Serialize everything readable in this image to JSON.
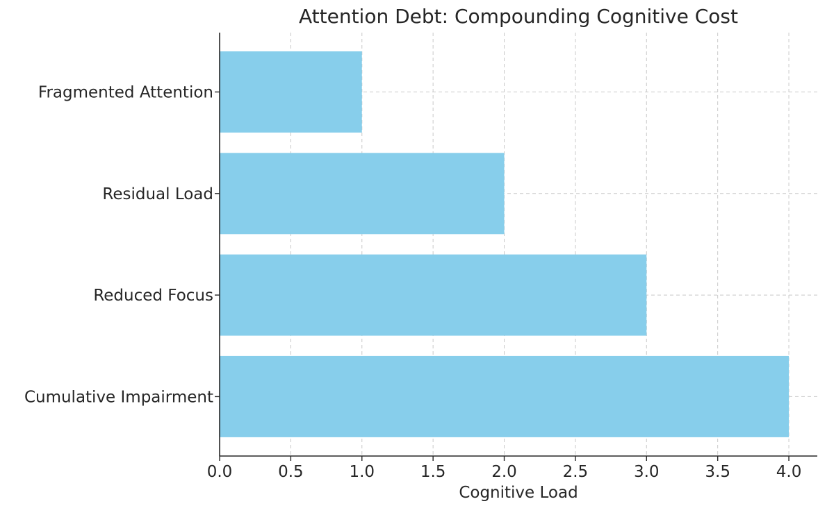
{
  "chart_data": {
    "type": "bar",
    "orientation": "horizontal",
    "title": "Attention Debt: Compounding Cognitive Cost",
    "xlabel": "Cognitive Load",
    "ylabel": "",
    "categories": [
      "Fragmented Attention",
      "Residual Load",
      "Reduced Focus",
      "Cumulative Impairment"
    ],
    "values": [
      1,
      2,
      3,
      4
    ],
    "xlim": [
      0,
      4.2
    ],
    "xticks": [
      "0.0",
      "0.5",
      "1.0",
      "1.5",
      "2.0",
      "2.5",
      "3.0",
      "3.5",
      "4.0"
    ],
    "grid": true,
    "bar_color": "#87ceeb"
  }
}
